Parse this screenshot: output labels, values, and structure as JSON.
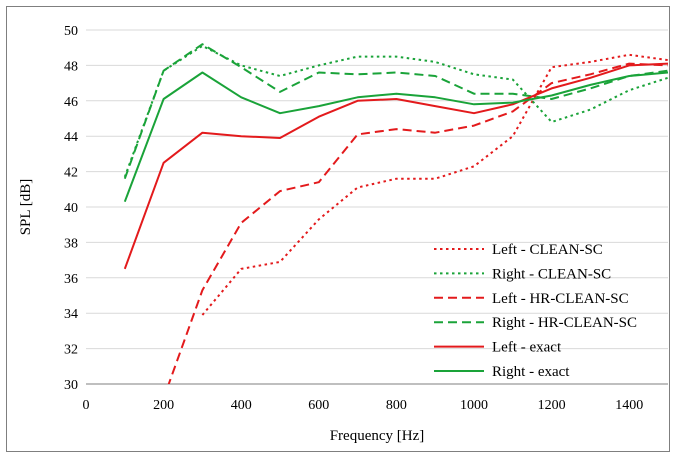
{
  "chart_data": {
    "type": "line",
    "title": "",
    "xlabel": "Frequency [Hz]",
    "ylabel": "SPL [dB]",
    "xlim": [
      0,
      1500
    ],
    "ylim": [
      30,
      50
    ],
    "xticks": [
      0,
      200,
      400,
      600,
      800,
      1000,
      1200,
      1400
    ],
    "yticks": [
      30,
      32,
      34,
      36,
      38,
      40,
      42,
      44,
      46,
      48,
      50
    ],
    "grid": "horizontal",
    "legend_position": "bottom-right",
    "series": [
      {
        "name": "Left - CLEAN-SC",
        "color": "#e31a1c",
        "dash": "dotted",
        "x": [
          300,
          400,
          500,
          600,
          700,
          800,
          900,
          1000,
          1100,
          1200,
          1300,
          1400,
          1500
        ],
        "y": [
          33.9,
          36.5,
          36.9,
          39.3,
          41.1,
          41.6,
          41.6,
          42.3,
          44.0,
          47.9,
          48.2,
          48.6,
          48.3
        ]
      },
      {
        "name": "Right - CLEAN-SC",
        "color": "#1aa339",
        "dash": "dotted",
        "x": [
          100,
          200,
          300,
          400,
          500,
          600,
          700,
          800,
          900,
          1000,
          1100,
          1200,
          1300,
          1400,
          1500
        ],
        "y": [
          41.7,
          47.7,
          49.1,
          48.0,
          47.4,
          48.0,
          48.5,
          48.5,
          48.2,
          47.5,
          47.2,
          44.8,
          45.5,
          46.6,
          47.3
        ]
      },
      {
        "name": "Left - HR-CLEAN-SC",
        "color": "#e31a1c",
        "dash": "dashed",
        "x": [
          210,
          300,
          400,
          500,
          600,
          700,
          800,
          900,
          1000,
          1100,
          1200,
          1300,
          1400,
          1500
        ],
        "y": [
          29.8,
          35.3,
          39.1,
          40.9,
          41.4,
          44.1,
          44.4,
          44.2,
          44.6,
          45.4,
          47.0,
          47.5,
          48.1,
          48.0
        ]
      },
      {
        "name": "Right - HR-CLEAN-SC",
        "color": "#1aa339",
        "dash": "dashed",
        "x": [
          100,
          200,
          300,
          400,
          500,
          600,
          700,
          800,
          900,
          1000,
          1100,
          1200,
          1300,
          1400,
          1500
        ],
        "y": [
          41.6,
          47.7,
          49.2,
          47.9,
          46.5,
          47.6,
          47.5,
          47.6,
          47.4,
          46.4,
          46.4,
          46.1,
          46.7,
          47.4,
          47.7
        ]
      },
      {
        "name": "Left - exact",
        "color": "#e31a1c",
        "dash": "solid",
        "x": [
          100,
          200,
          300,
          400,
          500,
          600,
          700,
          800,
          900,
          1000,
          1100,
          1200,
          1300,
          1400,
          1500
        ],
        "y": [
          36.5,
          42.5,
          44.2,
          44.0,
          43.9,
          45.1,
          46.0,
          46.1,
          45.7,
          45.3,
          45.8,
          46.7,
          47.3,
          48.0,
          48.1
        ]
      },
      {
        "name": "Right - exact",
        "color": "#1aa339",
        "dash": "solid",
        "x": [
          100,
          200,
          300,
          400,
          500,
          600,
          700,
          800,
          900,
          1000,
          1100,
          1200,
          1300,
          1400,
          1500
        ],
        "y": [
          40.3,
          46.1,
          47.6,
          46.2,
          45.3,
          45.7,
          46.2,
          46.4,
          46.2,
          45.8,
          45.9,
          46.3,
          46.9,
          47.4,
          47.6
        ]
      }
    ]
  }
}
